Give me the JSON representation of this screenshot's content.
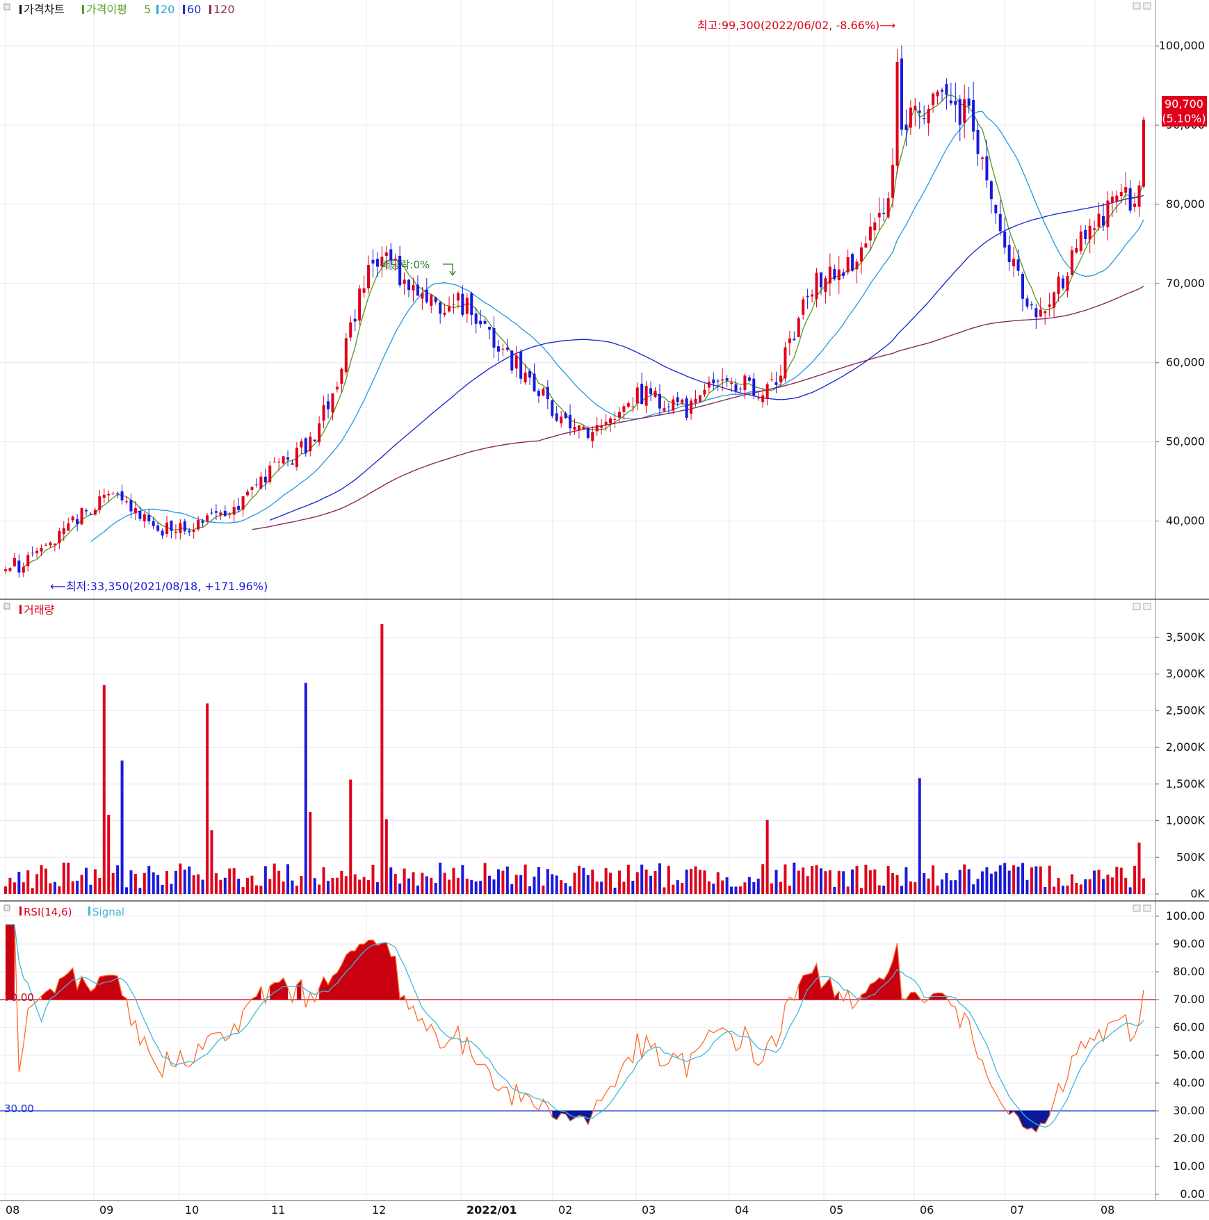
{
  "colors": {
    "up": "#e0001b",
    "down": "#1a1adc",
    "ma5": "#5aa02c",
    "ma20": "#2f9fe0",
    "ma60": "#1f2fd0",
    "ma120": "#8a2a55",
    "rsi": "#ff6a2a",
    "signal": "#3fb8d8",
    "line70": "#c8001a",
    "line30": "#1a2fc8",
    "overbought_fill": "#c80010",
    "oversold_fill": "#0a1a9a",
    "grid": "#e8e8ec",
    "panel_border": "#888888"
  },
  "price_panel": {
    "legend": {
      "title": "가격차트",
      "ma_label": "가격이평",
      "ma5": "5",
      "ma20": "20",
      "ma60": "60",
      "ma120": "120"
    },
    "annotation_high": "최고:99,300(2022/06/02, -8.66%)⟶",
    "annotation_low": "⟵최저:33,350(2021/08/18, +171.96%)",
    "annotation_dividend": "배당락:0%",
    "current_price": "90,700",
    "current_change": "(5.10%)"
  },
  "volume_panel": {
    "legend": "거래량"
  },
  "rsi_panel": {
    "legend_rsi": "RSI(14,6)",
    "legend_signal": "Signal",
    "level_70": "70.00",
    "level_30": "30.00"
  },
  "x_axis": {
    "months": [
      "08",
      "09",
      "10",
      "11",
      "12",
      "2022/01",
      "02",
      "03",
      "04",
      "05",
      "06",
      "07",
      "08"
    ]
  },
  "chart_data": [
    {
      "type": "candlestick",
      "title": "가격차트",
      "y_ticks": [
        "100,000",
        "90,000",
        "80,000",
        "70,000",
        "60,000",
        "50,000",
        "40,000"
      ],
      "y_range": [
        31000,
        103000
      ],
      "grid": true,
      "moving_averages": [
        "5",
        "20",
        "60",
        "120"
      ],
      "monthly_anchor_closes": [
        [
          "08",
          34000
        ],
        [
          "09",
          42000
        ],
        [
          "10",
          39000
        ],
        [
          "11",
          47000
        ],
        [
          "12",
          72000
        ],
        [
          "2022/01",
          65000
        ],
        [
          "02",
          52000
        ],
        [
          "03",
          55000
        ],
        [
          "04",
          57000
        ],
        [
          "05",
          73000
        ],
        [
          "06",
          95000
        ],
        [
          "07",
          67000
        ],
        [
          "08",
          82000
        ]
      ],
      "high": {
        "value": 99300,
        "date": "2022/06/02"
      },
      "low": {
        "value": 33350,
        "date": "2021/08/18"
      },
      "last": {
        "value": 90700,
        "change_pct": 5.1
      }
    },
    {
      "type": "bar",
      "title": "거래량",
      "y_ticks": [
        "3,500K",
        "3,000K",
        "2,500K",
        "2,000K",
        "1,500K",
        "1,000K",
        "500K",
        "0K"
      ],
      "y_range": [
        0,
        3850
      ],
      "unit": "K",
      "notable_spikes_k": [
        [
          "09",
          2850
        ],
        [
          "09",
          1820
        ],
        [
          "10",
          2600
        ],
        [
          "11",
          2880
        ],
        [
          "11",
          1560
        ],
        [
          "12",
          3680
        ],
        [
          "05",
          1580
        ]
      ]
    },
    {
      "type": "line",
      "title": "RSI(14,6)",
      "series": [
        {
          "name": "RSI(14,6)"
        },
        {
          "name": "Signal"
        }
      ],
      "y_ticks": [
        "100.00",
        "90.00",
        "80.00",
        "70.00",
        "60.00",
        "50.00",
        "40.00",
        "30.00",
        "20.00",
        "10.00",
        "0.00"
      ],
      "y_range": [
        0,
        100
      ],
      "levels": [
        70,
        30
      ],
      "peak_rsi": [
        [
          "04",
          94
        ],
        [
          "06",
          92
        ],
        [
          "08",
          91
        ]
      ],
      "trough_rsi": [
        [
          "06-07",
          17
        ]
      ]
    }
  ]
}
